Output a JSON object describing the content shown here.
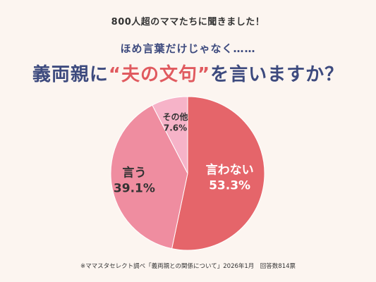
{
  "header": {
    "line1": "800人超のママたちに聞きました！",
    "line2": "ほめ言葉だけじゃなく……",
    "title_pre": "義両親に",
    "title_accent": "“夫の文句”",
    "title_post": "を言いますか？"
  },
  "chart_data": {
    "type": "pie",
    "title": "",
    "slices": [
      {
        "label": "言わない",
        "value": 53.3,
        "value_label": "53.3%",
        "color": "#e5656a",
        "label_color": "#ffffff"
      },
      {
        "label": "言う",
        "value": 39.1,
        "value_label": "39.1%",
        "color": "#ef8da0",
        "label_color": "#333333"
      },
      {
        "label": "その他",
        "value": 7.6,
        "value_label": "7.6%",
        "color": "#f6b3c8",
        "label_color": "#333333"
      }
    ],
    "start": "12 o'clock",
    "direction": "clockwise"
  },
  "footnote": "※ママスタセレクト調べ「義両親との関係について」2026年1月　回答数814票"
}
